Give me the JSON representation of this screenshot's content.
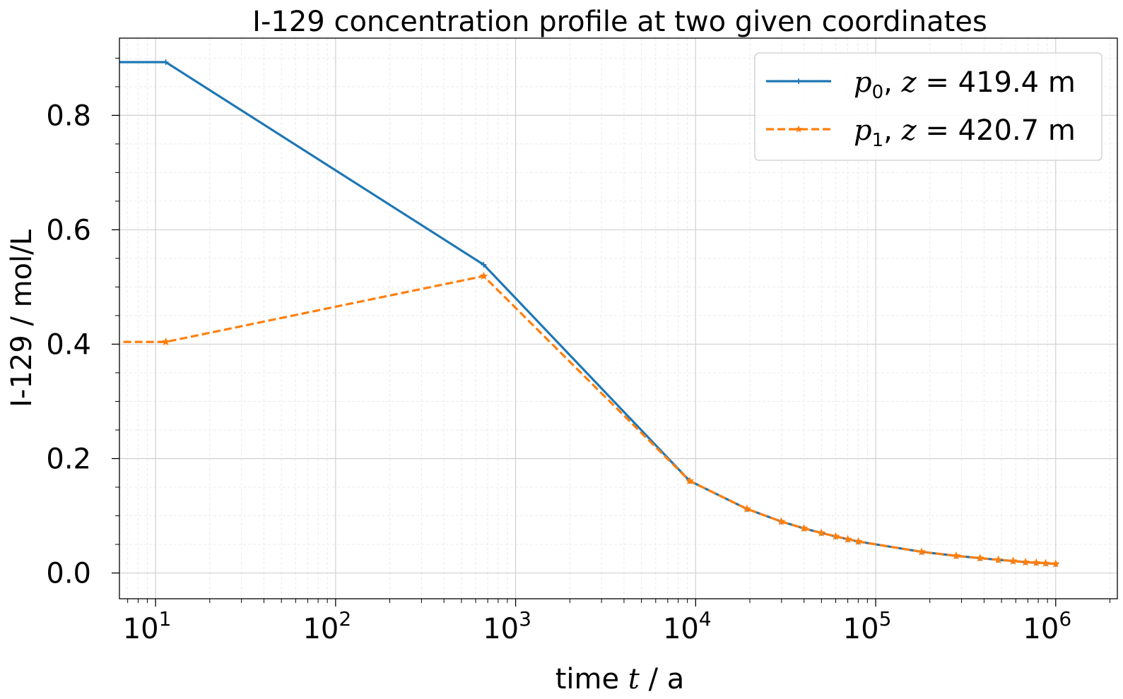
{
  "chart_data": {
    "type": "line",
    "title": "I-129 concentration profile at two given coordinates",
    "xlabel": {
      "prefix": "time ",
      "var": "t",
      "suffix": " / a"
    },
    "ylabel": "I-129 / mol/L",
    "x_scale": "log",
    "xlim": [
      6.3,
      2200000
    ],
    "ylim": [
      -0.045,
      0.935
    ],
    "x_ticks": [
      {
        "value": 10,
        "base": "10",
        "exp": "1"
      },
      {
        "value": 100,
        "base": "10",
        "exp": "2"
      },
      {
        "value": 1000,
        "base": "10",
        "exp": "3"
      },
      {
        "value": 10000,
        "base": "10",
        "exp": "4"
      },
      {
        "value": 100000,
        "base": "10",
        "exp": "5"
      },
      {
        "value": 1000000,
        "base": "10",
        "exp": "6"
      }
    ],
    "y_ticks": [
      {
        "value": 0.0,
        "label": "0.0"
      },
      {
        "value": 0.2,
        "label": "0.2"
      },
      {
        "value": 0.4,
        "label": "0.4"
      },
      {
        "value": 0.6,
        "label": "0.6"
      },
      {
        "value": 0.8,
        "label": "0.8"
      }
    ],
    "grid": true,
    "legend_position": "top-right",
    "series": [
      {
        "name": "p0, z = 419.4 m",
        "legend": {
          "var": "p",
          "sub": "0",
          "rest": ", ",
          "zvar": "z",
          "eq": " = 419.4 m"
        },
        "color": "#1f77b4",
        "dash": "solid",
        "marker": "plus",
        "x": [
          0.1,
          11.4,
          664.4,
          9265,
          19271,
          29871,
          39934,
          49946,
          59962,
          69981,
          80000,
          179931,
          279937,
          379934,
          479928,
          579925,
          679928,
          779928,
          879928,
          1000000
        ],
        "y": [
          0.893,
          0.893,
          0.539,
          0.161,
          0.112,
          0.09,
          0.078,
          0.07,
          0.064,
          0.059,
          0.055,
          0.037,
          0.03,
          0.026,
          0.023,
          0.021,
          0.019,
          0.018,
          0.017,
          0.016
        ]
      },
      {
        "name": "p1, z = 420.7 m",
        "legend": {
          "var": "p",
          "sub": "1",
          "rest": ", ",
          "zvar": "z",
          "eq": " = 420.7 m"
        },
        "color": "#ff7f0e",
        "dash": "dashed",
        "marker": "star",
        "x": [
          0.1,
          11.4,
          664.4,
          9265,
          19271,
          29871,
          39934,
          49946,
          59962,
          69981,
          80000,
          179931,
          279937,
          379934,
          479928,
          579925,
          679928,
          779928,
          879928,
          1000000
        ],
        "y": [
          0.404,
          0.404,
          0.519,
          0.161,
          0.112,
          0.09,
          0.078,
          0.07,
          0.064,
          0.059,
          0.055,
          0.037,
          0.03,
          0.026,
          0.023,
          0.021,
          0.019,
          0.018,
          0.017,
          0.016
        ]
      }
    ]
  }
}
